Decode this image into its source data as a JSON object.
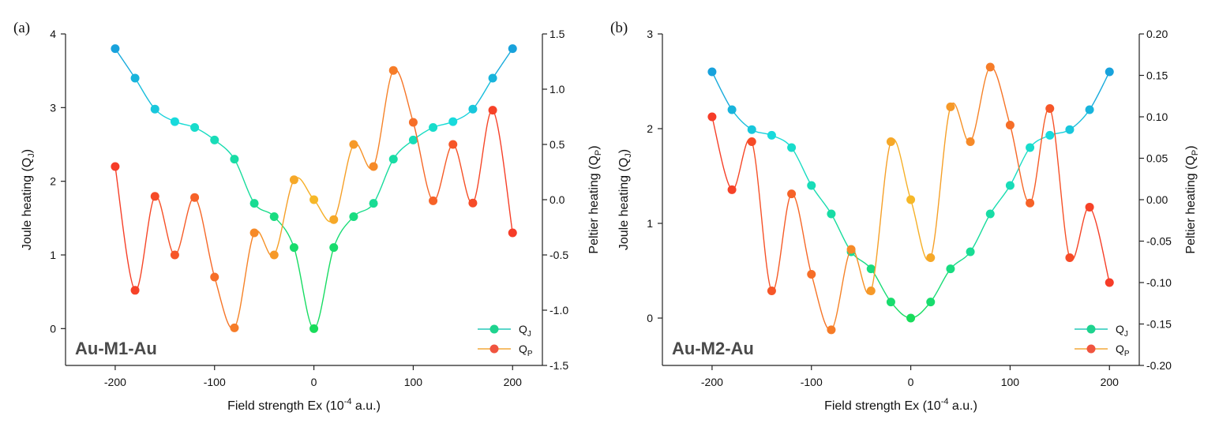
{
  "chart_data": [
    {
      "type": "line",
      "panel_label": "(a)",
      "sample": "Au-M1-Au",
      "xlabel": "Field strength Ex (10",
      "xlabel_exp": "-4",
      "xlabel_tail": " a.u.)",
      "ylabel": "Joule heating (Q",
      "ylabel_sub": "J",
      "ylabel_tail": ")",
      "y2label": "Peltier heating (Q",
      "y2label_sub": "P",
      "y2label_tail": ")",
      "xlim": [
        -250,
        230
      ],
      "ylim": [
        -0.5,
        4
      ],
      "y2lim": [
        -1.5,
        1.5
      ],
      "xticks": [
        -200,
        -100,
        0,
        100,
        200
      ],
      "xtick_labels": [
        "-200",
        "-100",
        "0",
        "100",
        "200"
      ],
      "yticks": [
        0,
        1,
        2,
        3,
        4
      ],
      "ytick_labels": [
        "0",
        "1",
        "2",
        "3",
        "4"
      ],
      "y2ticks": [
        -1.5,
        -1.0,
        -0.5,
        0.0,
        0.5,
        1.0,
        1.5
      ],
      "y2tick_labels": [
        "-1.5",
        "-1.0",
        "-0.5",
        "0.0",
        "0.5",
        "1.0",
        "1.5"
      ],
      "x": [
        -200,
        -180,
        -160,
        -140,
        -120,
        -100,
        -80,
        -60,
        -40,
        -20,
        0,
        20,
        40,
        60,
        80,
        100,
        120,
        140,
        160,
        180,
        200
      ],
      "series": [
        {
          "name": "Q",
          "name_sub": "J",
          "axis": "left",
          "values": [
            3.8,
            3.4,
            2.98,
            2.81,
            2.73,
            2.56,
            2.3,
            1.7,
            1.52,
            1.1,
            0.0,
            1.1,
            1.52,
            1.7,
            2.3,
            2.56,
            2.73,
            2.81,
            2.98,
            3.4,
            3.8
          ]
        },
        {
          "name": "Q",
          "name_sub": "P",
          "axis": "right",
          "values": [
            0.3,
            -0.82,
            0.03,
            -0.5,
            0.02,
            -0.7,
            -1.16,
            -0.3,
            -0.5,
            0.18,
            0.0,
            -0.18,
            0.5,
            0.3,
            1.17,
            0.7,
            -0.01,
            0.5,
            -0.03,
            0.81,
            -0.3
          ]
        }
      ]
    },
    {
      "type": "line",
      "panel_label": "(b)",
      "sample": "Au-M2-Au",
      "xlabel": "Field strength Ex (10",
      "xlabel_exp": "-4",
      "xlabel_tail": " a.u.)",
      "ylabel": "Joule heating (Q",
      "ylabel_sub": "J",
      "ylabel_tail": ")",
      "y2label": "Peltier heating (Q",
      "y2label_sub": "P",
      "y2label_tail": ")",
      "xlim": [
        -250,
        230
      ],
      "ylim": [
        -0.5,
        3
      ],
      "y2lim": [
        -0.2,
        0.2
      ],
      "xticks": [
        -200,
        -100,
        0,
        100,
        200
      ],
      "xtick_labels": [
        "-200",
        "-100",
        "0",
        "100",
        "200"
      ],
      "yticks": [
        0,
        1,
        2,
        3
      ],
      "ytick_labels": [
        "0",
        "1",
        "2",
        "3"
      ],
      "y2ticks": [
        -0.2,
        -0.15,
        -0.1,
        -0.05,
        0.0,
        0.05,
        0.1,
        0.15,
        0.2
      ],
      "y2tick_labels": [
        "-0.20",
        "-0.15",
        "-0.10",
        "-0.05",
        "0.00",
        "0.05",
        "0.10",
        "0.15",
        "0.20"
      ],
      "x": [
        -200,
        -180,
        -160,
        -140,
        -120,
        -100,
        -80,
        -60,
        -40,
        -20,
        0,
        20,
        40,
        60,
        80,
        100,
        120,
        140,
        160,
        180,
        200
      ],
      "series": [
        {
          "name": "Q",
          "name_sub": "J",
          "axis": "left",
          "values": [
            2.6,
            2.2,
            1.99,
            1.93,
            1.8,
            1.4,
            1.1,
            0.7,
            0.52,
            0.17,
            0.0,
            0.17,
            0.52,
            0.7,
            1.1,
            1.4,
            1.8,
            1.93,
            1.99,
            2.2,
            2.6
          ]
        },
        {
          "name": "Q",
          "name_sub": "P",
          "axis": "right",
          "values": [
            0.1,
            0.012,
            0.07,
            -0.11,
            0.007,
            -0.09,
            -0.157,
            -0.06,
            -0.11,
            0.07,
            0.0,
            -0.07,
            0.112,
            0.07,
            0.16,
            0.09,
            -0.004,
            0.11,
            -0.07,
            -0.009,
            -0.1
          ]
        }
      ]
    }
  ]
}
